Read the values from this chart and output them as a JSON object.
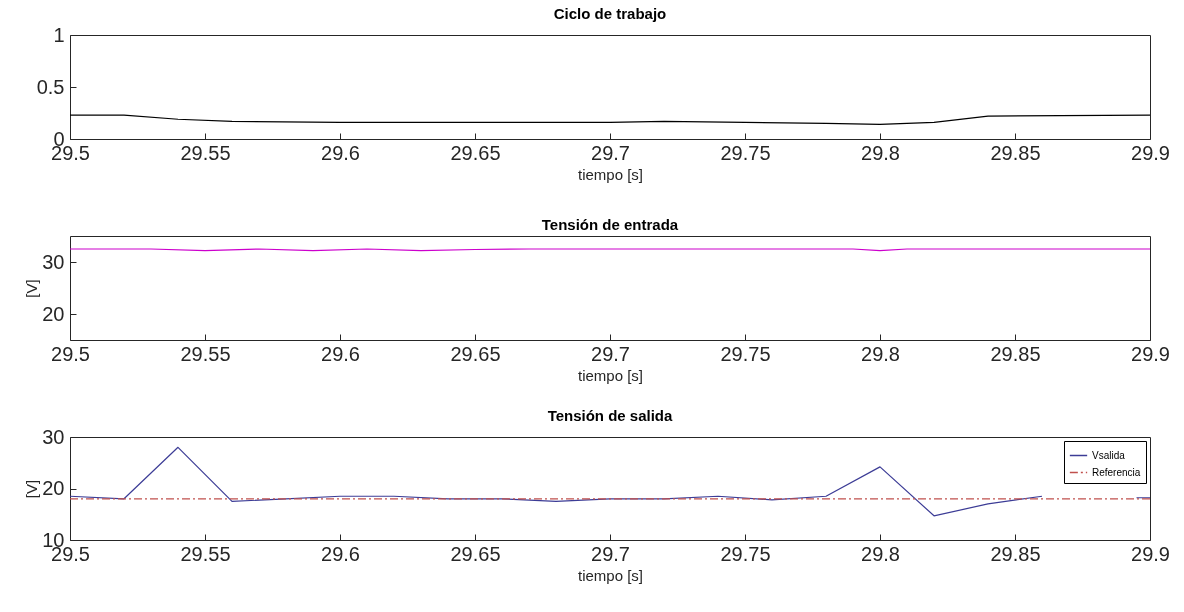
{
  "chart_data": [
    {
      "type": "line",
      "title": "Ciclo de trabajo",
      "xlabel": "tiempo [s]",
      "xlim": [
        29.5,
        29.9
      ],
      "xticks": [
        29.5,
        29.55,
        29.6,
        29.65,
        29.7,
        29.75,
        29.8,
        29.85,
        29.9
      ],
      "ylim": [
        0,
        1
      ],
      "yticks": [
        0,
        0.5,
        1
      ],
      "grid": false,
      "legend": false,
      "series": [
        {
          "color": "#000000",
          "x": [
            29.5,
            29.52,
            29.54,
            29.56,
            29.6,
            29.65,
            29.7,
            29.72,
            29.75,
            29.78,
            29.8,
            29.82,
            29.84,
            29.9
          ],
          "values": [
            0.23,
            0.23,
            0.19,
            0.17,
            0.16,
            0.16,
            0.16,
            0.17,
            0.16,
            0.15,
            0.14,
            0.16,
            0.22,
            0.23
          ]
        }
      ]
    },
    {
      "type": "line",
      "title": "Tensión de entrada",
      "xlabel": "tiempo [s]",
      "ylabel": "[V]",
      "xlim": [
        29.5,
        29.9
      ],
      "xticks": [
        29.5,
        29.55,
        29.6,
        29.65,
        29.7,
        29.75,
        29.8,
        29.85,
        29.9
      ],
      "ylim": [
        15,
        35
      ],
      "yticks": [
        20,
        30
      ],
      "grid": false,
      "legend": false,
      "series": [
        {
          "color": "#cc00cc",
          "x": [
            29.5,
            29.53,
            29.55,
            29.57,
            29.59,
            29.61,
            29.63,
            29.65,
            29.67,
            29.79,
            29.8,
            29.81,
            29.9
          ],
          "values": [
            32.5,
            32.5,
            32.2,
            32.5,
            32.2,
            32.5,
            32.2,
            32.4,
            32.5,
            32.5,
            32.2,
            32.5,
            32.5
          ]
        }
      ]
    },
    {
      "type": "line",
      "title": "Tensión de salida",
      "xlabel": "tiempo [s]",
      "ylabel": "[V]",
      "xlim": [
        29.5,
        29.9
      ],
      "xticks": [
        29.5,
        29.55,
        29.6,
        29.65,
        29.7,
        29.75,
        29.8,
        29.85,
        29.9
      ],
      "ylim": [
        10,
        30
      ],
      "yticks": [
        10,
        20,
        30
      ],
      "grid": false,
      "legend": "top right",
      "series": [
        {
          "name": "Vsalida",
          "color": "#3c3c96",
          "line_style": "solid",
          "x": [
            29.5,
            29.52,
            29.54,
            29.56,
            29.58,
            29.6,
            29.62,
            29.64,
            29.66,
            29.68,
            29.7,
            29.72,
            29.74,
            29.76,
            29.78,
            29.8,
            29.82,
            29.84,
            29.86,
            29.88,
            29.895,
            29.9
          ],
          "values": [
            18.5,
            18,
            28,
            17.5,
            18,
            18.5,
            18.5,
            18,
            18,
            17.5,
            18,
            18,
            18.5,
            17.8,
            18.5,
            24.2,
            14.7,
            17,
            18.5,
            null,
            18.2,
            18.2
          ]
        },
        {
          "name": "Referencia",
          "color": "#c0504d",
          "line_style": "dashed",
          "x": [
            29.5,
            29.9
          ],
          "values": [
            18,
            18
          ]
        }
      ]
    }
  ]
}
